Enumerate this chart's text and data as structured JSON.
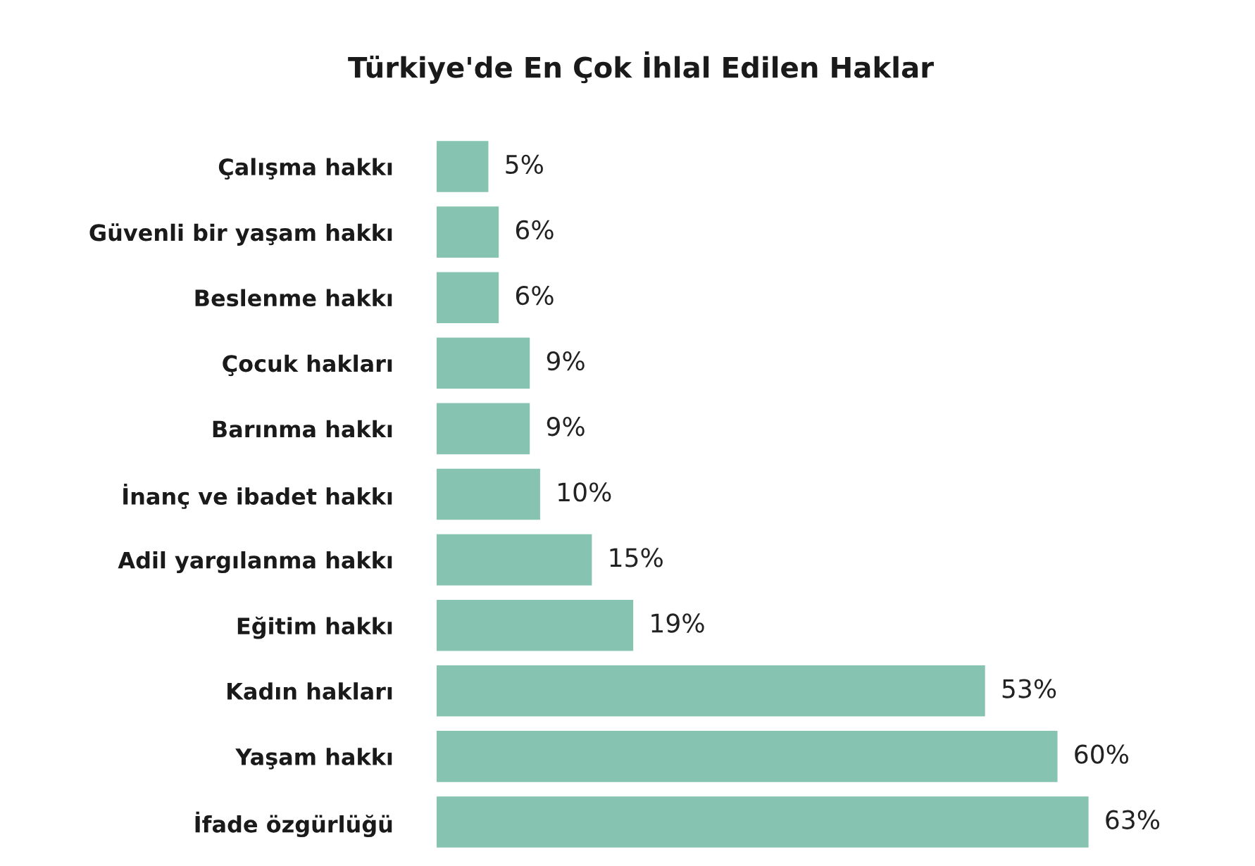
{
  "chart_data": {
    "type": "bar",
    "orientation": "horizontal",
    "title": "Türkiye'de En Çok İhlal Edilen Haklar",
    "categories": [
      "Çalışma hakkı",
      "Güvenli bir yaşam hakkı",
      "Beslenme hakkı",
      "Çocuk hakları",
      "Barınma hakkı",
      "İnanç ve ibadet hakkı",
      "Adil yargılanma hakkı",
      "Eğitim hakkı",
      "Kadın hakları",
      "Yaşam hakkı",
      "İfade özgürlüğü"
    ],
    "values": [
      5,
      6,
      6,
      9,
      9,
      10,
      15,
      19,
      53,
      60,
      63
    ],
    "value_labels": [
      "5%",
      "6%",
      "6%",
      "9%",
      "9%",
      "10%",
      "15%",
      "19%",
      "53%",
      "60%",
      "63%"
    ],
    "color": "#86c4b1",
    "tick_labels": "y",
    "grid": false,
    "legend": false
  }
}
